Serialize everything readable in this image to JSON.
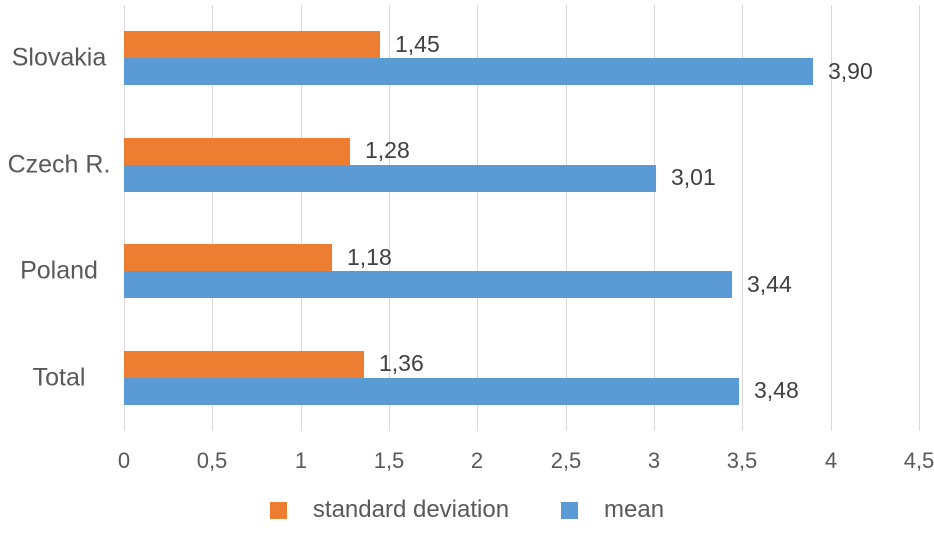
{
  "chart_data": {
    "type": "bar",
    "orientation": "horizontal",
    "title": "",
    "categories": [
      "Slovakia",
      "Czech R.",
      "Poland",
      "Total"
    ],
    "series": [
      {
        "name": "standard deviation",
        "color": "#ED7D31",
        "values": [
          1.45,
          1.28,
          1.18,
          1.36
        ],
        "labels": [
          "1,45",
          "1,28",
          "1,18",
          "1,36"
        ]
      },
      {
        "name": "mean",
        "color": "#5B9BD5",
        "values": [
          3.9,
          3.01,
          3.44,
          3.48
        ],
        "labels": [
          "3,90",
          "3,01",
          "3,44",
          "3,48"
        ]
      }
    ],
    "xlim": [
      0,
      4.5
    ],
    "x_ticks": [
      0,
      0.5,
      1,
      1.5,
      2,
      2.5,
      3,
      3.5,
      4,
      4.5
    ],
    "x_tick_labels": [
      "0",
      "0,5",
      "1",
      "1,5",
      "2",
      "2,5",
      "3",
      "3,5",
      "4",
      "4,5"
    ],
    "grid": "vertical-only",
    "gridline_color": "#D9D9D9",
    "axis_text_color": "#595959",
    "data_label_color": "#404040",
    "legend_position": "bottom"
  },
  "legend": {
    "items": [
      {
        "label": "standard deviation",
        "color": "#ED7D31"
      },
      {
        "label": "mean",
        "color": "#5B9BD5"
      }
    ]
  }
}
